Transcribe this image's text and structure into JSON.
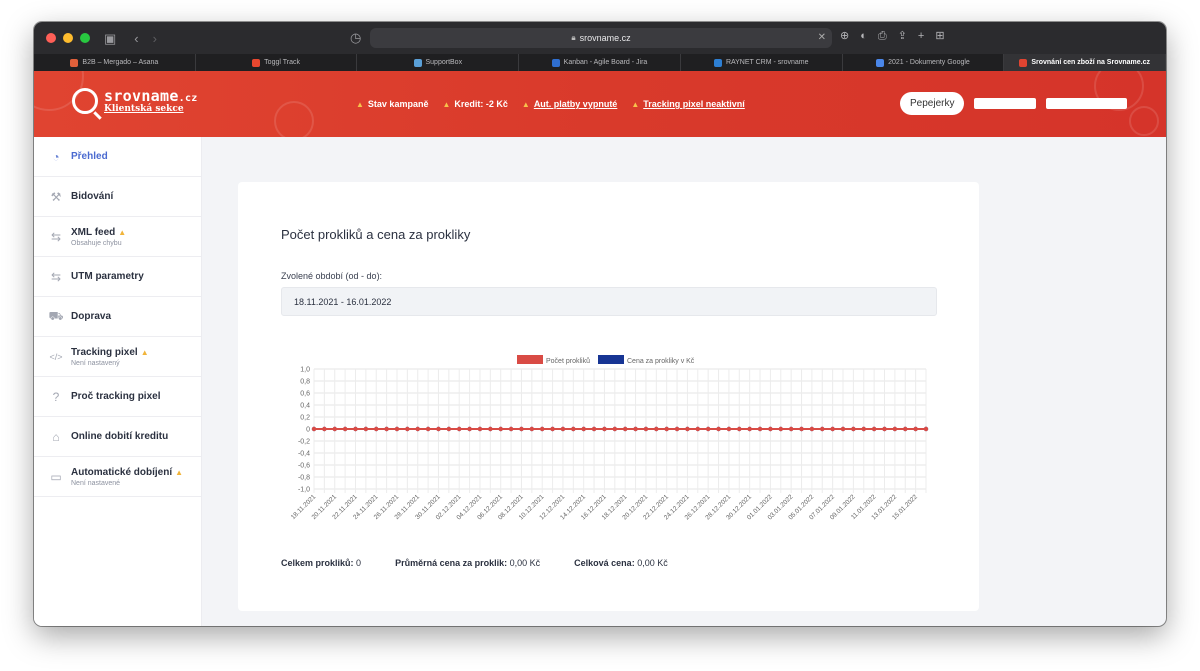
{
  "browser": {
    "url": "srovname.cz",
    "tabs": [
      {
        "label": "B2B – Mergado – Asana",
        "color": "#e0603b"
      },
      {
        "label": "Toggl Track",
        "color": "#e8472f"
      },
      {
        "label": "SupportBox",
        "color": "#5aa0d8"
      },
      {
        "label": "Kanban - Agile Board - Jira",
        "color": "#2f6fd1"
      },
      {
        "label": "RAYNET CRM - srovname",
        "color": "#2d7fd3"
      },
      {
        "label": "2021 - Dokumenty Google",
        "color": "#4a86e8"
      },
      {
        "label": "Srovnání cen zboží na Srovname.cz",
        "color": "#e04431"
      }
    ]
  },
  "header": {
    "logo_main": "srovname",
    "logo_tld": ".cz",
    "logo_sub": "Klientská sekce",
    "alerts": [
      {
        "label": "Stav kampaně",
        "link": false
      },
      {
        "label": "Kredit: -2 Kč",
        "link": false
      },
      {
        "label": "Aut. platby vypnuté",
        "link": true
      },
      {
        "label": "Tracking pixel neaktivní",
        "link": true
      }
    ],
    "shop_button": "Pepejerky"
  },
  "sidebar": {
    "items": [
      {
        "label": "Přehled",
        "sub": "",
        "warn": false,
        "icon": "gauge-icon",
        "glyph": "◔"
      },
      {
        "label": "Bidování",
        "sub": "",
        "warn": false,
        "icon": "gavel-icon",
        "glyph": "⚒"
      },
      {
        "label": "XML feed",
        "sub": "Obsahuje chybu",
        "warn": true,
        "icon": "sync-icon",
        "glyph": "⇆"
      },
      {
        "label": "UTM parametry",
        "sub": "",
        "warn": false,
        "icon": "sync-icon",
        "glyph": "⇆"
      },
      {
        "label": "Doprava",
        "sub": "",
        "warn": false,
        "icon": "truck-icon",
        "glyph": "⛟"
      },
      {
        "label": "Tracking pixel",
        "sub": "Není nastavený",
        "warn": true,
        "icon": "code-icon",
        "glyph": "</>"
      },
      {
        "label": "Proč tracking pixel",
        "sub": "",
        "warn": false,
        "icon": "question-icon",
        "glyph": "?"
      },
      {
        "label": "Online dobití kreditu",
        "sub": "",
        "warn": false,
        "icon": "store-icon",
        "glyph": "⌂"
      },
      {
        "label": "Automatické dobíjení",
        "sub": "Není nastavené",
        "warn": true,
        "icon": "card-icon",
        "glyph": "▭"
      }
    ]
  },
  "main": {
    "title": "Počet prokliků a cena za prokliky",
    "period_label": "Zvolené období (od - do):",
    "period_value": "18.11.2021 - 16.01.2022",
    "stats": {
      "clicks_label": "Celkem prokliků:",
      "clicks_value": "0",
      "avg_label": "Průměrná cena za proklik:",
      "avg_value": "0,00 Kč",
      "total_label": "Celková cena:",
      "total_value": "0,00 Kč"
    }
  },
  "chart_data": {
    "type": "line",
    "title": "",
    "xlabel": "",
    "ylabel": "",
    "ylim": [
      -1.0,
      1.0
    ],
    "yticks": [
      "1,0",
      "0,8",
      "0,6",
      "0,4",
      "0,2",
      "0",
      "-0,2",
      "-0,4",
      "-0,6",
      "-0,8",
      "-1,0"
    ],
    "x_tick_labels": [
      "18.11.2021",
      "20.11.2021",
      "22.11.2021",
      "24.11.2021",
      "26.11.2021",
      "28.11.2021",
      "30.11.2021",
      "02.12.2021",
      "04.12.2021",
      "06.12.2021",
      "08.12.2021",
      "10.12.2021",
      "12.12.2021",
      "14.12.2021",
      "16.12.2021",
      "18.12.2021",
      "20.12.2021",
      "22.12.2021",
      "24.12.2021",
      "26.12.2021",
      "28.12.2021",
      "30.12.2021",
      "01.01.2022",
      "03.01.2022",
      "05.01.2022",
      "07.01.2022",
      "09.01.2022",
      "11.01.2022",
      "13.01.2022",
      "15.01.2022"
    ],
    "grid": true,
    "legend": "top",
    "series": [
      {
        "name": "Počet prokliků",
        "color": "#d94b45",
        "values": [
          0,
          0,
          0,
          0,
          0,
          0,
          0,
          0,
          0,
          0,
          0,
          0,
          0,
          0,
          0,
          0,
          0,
          0,
          0,
          0,
          0,
          0,
          0,
          0,
          0,
          0,
          0,
          0,
          0,
          0,
          0,
          0,
          0,
          0,
          0,
          0,
          0,
          0,
          0,
          0,
          0,
          0,
          0,
          0,
          0,
          0,
          0,
          0,
          0,
          0,
          0,
          0,
          0,
          0,
          0,
          0,
          0,
          0,
          0,
          0
        ]
      },
      {
        "name": "Cena za prokliky v Kč",
        "color": "#173594",
        "values": [
          0,
          0,
          0,
          0,
          0,
          0,
          0,
          0,
          0,
          0,
          0,
          0,
          0,
          0,
          0,
          0,
          0,
          0,
          0,
          0,
          0,
          0,
          0,
          0,
          0,
          0,
          0,
          0,
          0,
          0,
          0,
          0,
          0,
          0,
          0,
          0,
          0,
          0,
          0,
          0,
          0,
          0,
          0,
          0,
          0,
          0,
          0,
          0,
          0,
          0,
          0,
          0,
          0,
          0,
          0,
          0,
          0,
          0,
          0,
          0
        ]
      }
    ]
  }
}
